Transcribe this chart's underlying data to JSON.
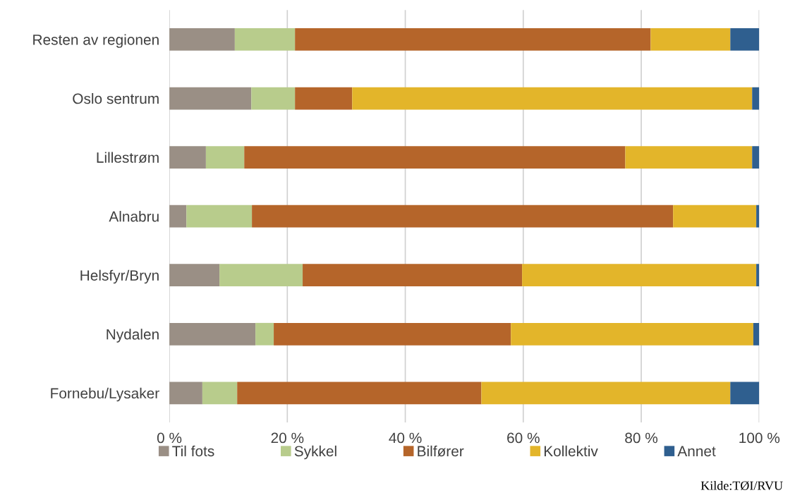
{
  "chart_data": {
    "type": "bar",
    "orientation": "horizontal",
    "stacked": true,
    "categories": [
      "Resten av regionen",
      "Oslo sentrum",
      "Lillestrøm",
      "Alnabru",
      "Helsfyr/Bryn",
      "Nydalen",
      "Fornebu/Lysaker"
    ],
    "series": [
      {
        "name": "Til fots",
        "color": "#9a8f85",
        "values": [
          11.1,
          13.9,
          6.2,
          2.9,
          8.5,
          14.6,
          5.6
        ]
      },
      {
        "name": "Sykkel",
        "color": "#b8cc8c",
        "values": [
          10.2,
          7.4,
          6.5,
          11.1,
          14.1,
          3.1,
          5.9
        ]
      },
      {
        "name": "Bilfører",
        "color": "#b5652a",
        "values": [
          60.3,
          9.7,
          64.6,
          71.4,
          37.2,
          40.2,
          41.4
        ]
      },
      {
        "name": "Kollektiv",
        "color": "#e3b52a",
        "values": [
          13.5,
          67.8,
          21.5,
          14.1,
          39.7,
          41.1,
          42.2
        ]
      },
      {
        "name": "Annet",
        "color": "#2f5f8f",
        "values": [
          4.9,
          1.2,
          1.2,
          0.5,
          0.5,
          1.0,
          4.9
        ]
      }
    ],
    "xlim": [
      0,
      100
    ],
    "xticks": [
      {
        "value": 0,
        "label": "0 %"
      },
      {
        "value": 20,
        "label": "20 %"
      },
      {
        "value": 40,
        "label": "40 %"
      },
      {
        "value": 60,
        "label": "60 %"
      },
      {
        "value": 80,
        "label": "80 %"
      },
      {
        "value": 100,
        "label": "100 %"
      }
    ],
    "grid": "x",
    "legend": "bottom",
    "annotations": [
      "Kilde:TØI/RVU"
    ]
  }
}
